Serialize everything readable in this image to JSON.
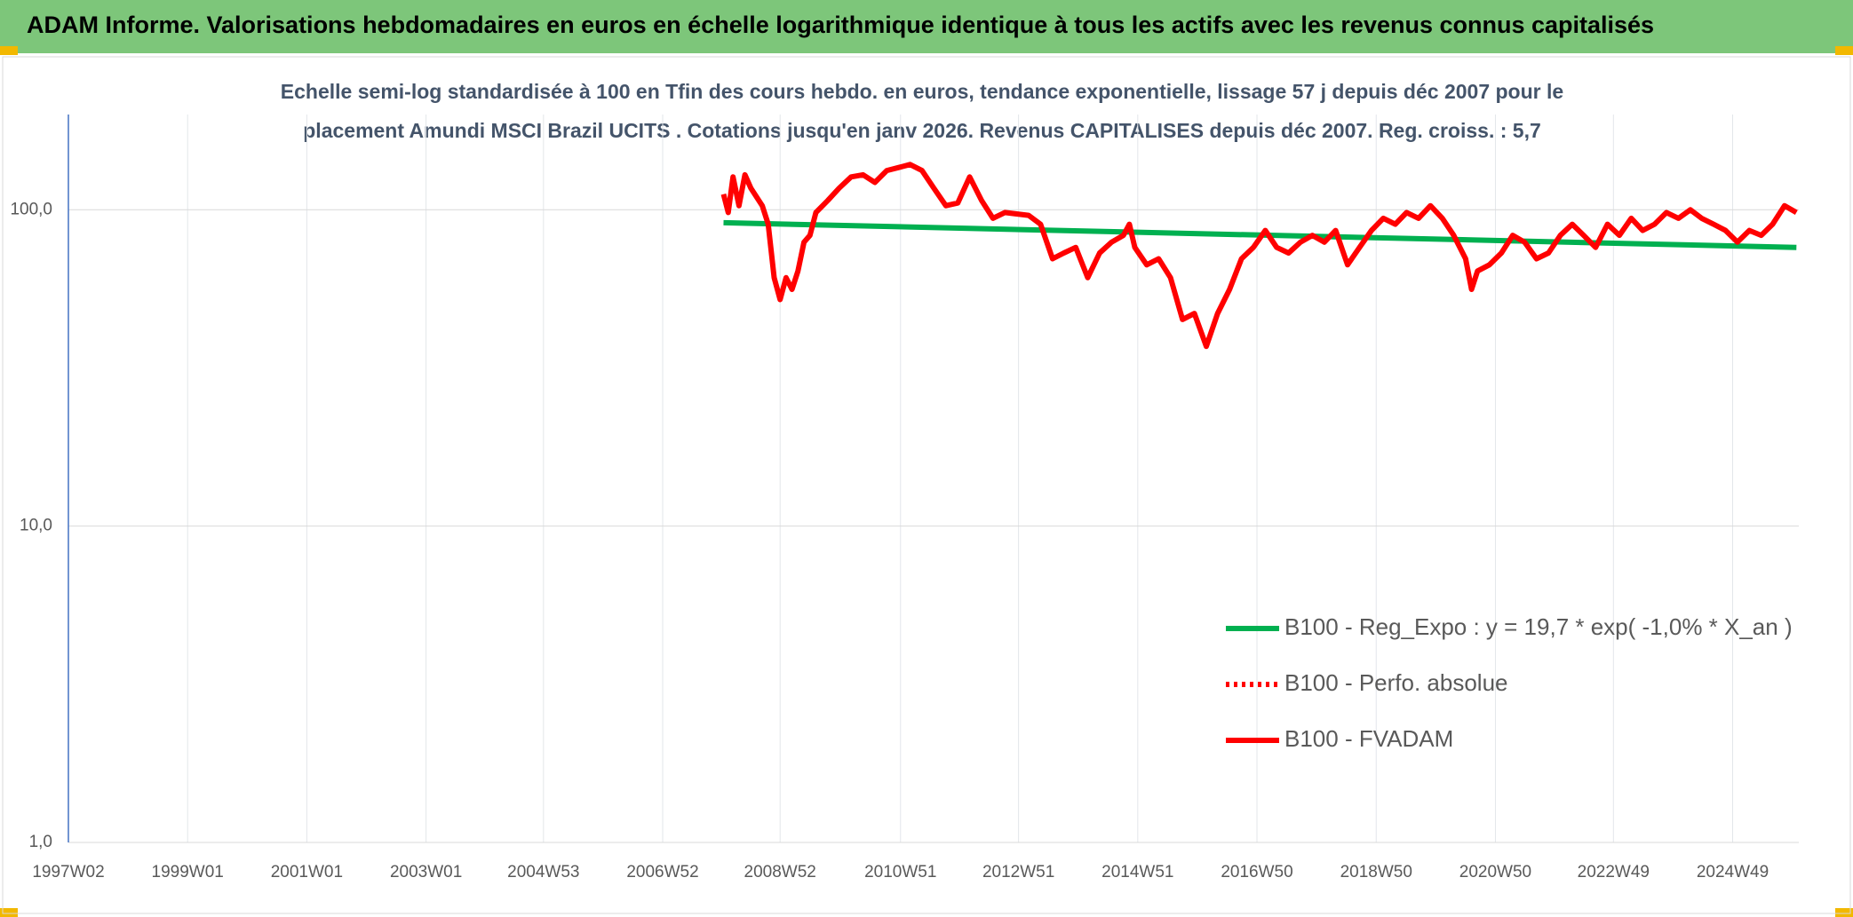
{
  "header": {
    "title": "ADAM Informe. Valorisations hebdomadaires en euros en échelle logarithmique identique à tous les actifs avec les revenus connus capitalisés"
  },
  "chart_data": {
    "type": "line",
    "title_lines": [
      "Echelle semi-log standardisée à 100 en Tfin des cours hebdo. en euros, tendance exponentielle, lissage 57 j depuis déc 2007 pour le",
      "placement Amundi MSCI Brazil UCITS . Cotations jusqu'en janv 2026. Revenus CAPITALISES depuis déc 2007. Reg. croiss. : 5,7"
    ],
    "log_scale": true,
    "grid": true,
    "legend": "right",
    "xlim": [
      1997.02,
      2026.05
    ],
    "xticks": [
      {
        "value": 1997.02,
        "label": "1997W02"
      },
      {
        "value": 1999.02,
        "label": "1999W01"
      },
      {
        "value": 2001.02,
        "label": "2001W01"
      },
      {
        "value": 2003.02,
        "label": "2003W01"
      },
      {
        "value": 2004.99,
        "label": "2004W53"
      },
      {
        "value": 2006.99,
        "label": "2006W52"
      },
      {
        "value": 2008.96,
        "label": "2008W52"
      },
      {
        "value": 2010.98,
        "label": "2010W51"
      },
      {
        "value": 2012.96,
        "label": "2012W51"
      },
      {
        "value": 2014.96,
        "label": "2014W51"
      },
      {
        "value": 2016.96,
        "label": "2016W50"
      },
      {
        "value": 2018.96,
        "label": "2018W50"
      },
      {
        "value": 2020.96,
        "label": "2020W50"
      },
      {
        "value": 2022.94,
        "label": "2022W49"
      },
      {
        "value": 2024.94,
        "label": "2024W49"
      }
    ],
    "ylim": [
      1,
      200
    ],
    "yticks": [
      {
        "value": 1,
        "label": "1,0"
      },
      {
        "value": 10,
        "label": "10,0"
      },
      {
        "value": 100,
        "label": "100,0"
      }
    ],
    "series": [
      {
        "name": "B100 - Reg_Expo : y = 19,7 * exp( -1,0% *  X_an )",
        "color": "#00b050",
        "style": "solid",
        "x": [
          2008.01,
          2026.01
        ],
        "values": [
          91,
          76
        ]
      },
      {
        "name": "B100 - Perfo. absolue",
        "color": "#ff0000",
        "style": "dotted",
        "x": [],
        "values": []
      },
      {
        "name": "B100 - FVADAM",
        "color": "#ff0000",
        "style": "solid",
        "x": [
          2008.01,
          2008.09,
          2008.17,
          2008.27,
          2008.37,
          2008.47,
          2008.66,
          2008.76,
          2008.86,
          2008.96,
          2009.06,
          2009.16,
          2009.26,
          2009.36,
          2009.46,
          2009.56,
          2009.76,
          2009.95,
          2010.15,
          2010.35,
          2010.55,
          2010.75,
          2010.95,
          2011.14,
          2011.34,
          2011.54,
          2011.74,
          2011.94,
          2012.14,
          2012.34,
          2012.53,
          2012.73,
          2012.93,
          2013.13,
          2013.33,
          2013.53,
          2013.72,
          2013.92,
          2014.12,
          2014.32,
          2014.52,
          2014.72,
          2014.82,
          2014.91,
          2015.11,
          2015.31,
          2015.51,
          2015.71,
          2015.91,
          2016.11,
          2016.3,
          2016.5,
          2016.7,
          2016.9,
          2017.1,
          2017.29,
          2017.49,
          2017.69,
          2017.89,
          2018.09,
          2018.28,
          2018.48,
          2018.68,
          2018.88,
          2019.08,
          2019.28,
          2019.47,
          2019.67,
          2019.87,
          2020.07,
          2020.26,
          2020.46,
          2020.56,
          2020.66,
          2020.86,
          2021.06,
          2021.25,
          2021.45,
          2021.65,
          2021.85,
          2022.05,
          2022.25,
          2022.44,
          2022.64,
          2022.84,
          2023.04,
          2023.24,
          2023.43,
          2023.63,
          2023.83,
          2024.03,
          2024.23,
          2024.42,
          2024.62,
          2024.82,
          2025.02,
          2025.22,
          2025.42,
          2025.61,
          2025.81,
          2026.01
        ],
        "values": [
          112,
          98,
          127,
          103,
          129,
          117,
          103,
          90,
          61,
          52,
          61,
          56,
          64,
          79,
          83,
          98,
          107,
          117,
          127,
          129,
          122,
          133,
          136,
          139,
          133,
          117,
          103,
          105,
          127,
          107,
          94,
          98,
          97,
          96,
          90,
          70,
          73,
          76,
          61,
          73,
          79,
          83,
          90,
          76,
          67,
          70,
          61,
          45,
          47,
          37,
          47,
          56,
          70,
          76,
          86,
          76,
          73,
          79,
          83,
          79,
          86,
          67,
          76,
          86,
          94,
          90,
          98,
          94,
          103,
          94,
          83,
          70,
          56,
          64,
          67,
          73,
          83,
          79,
          70,
          73,
          83,
          90,
          83,
          76,
          90,
          83,
          94,
          86,
          90,
          98,
          94,
          100,
          94,
          90,
          86,
          79,
          86,
          83,
          90,
          103,
          98
        ]
      }
    ]
  }
}
